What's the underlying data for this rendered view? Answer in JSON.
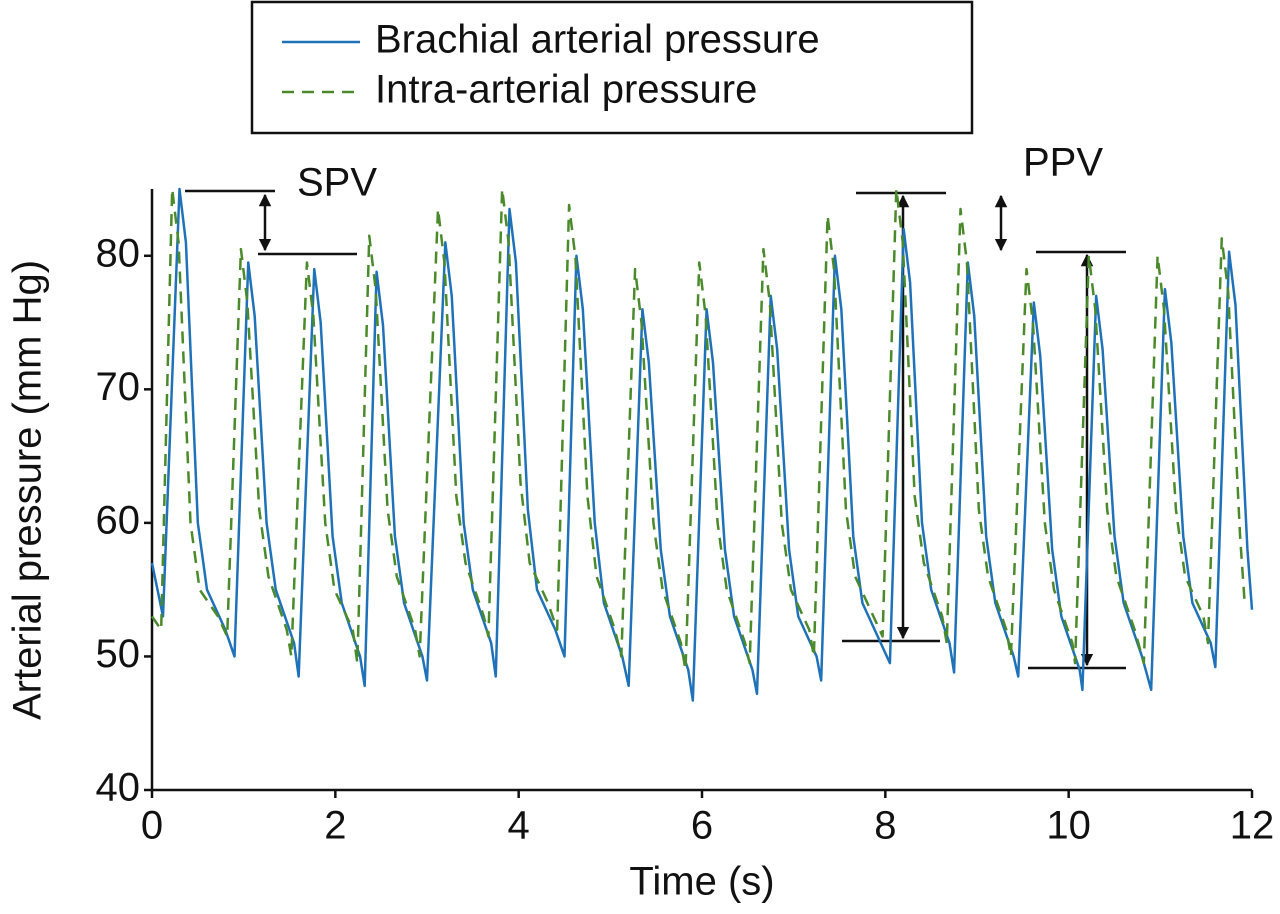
{
  "chart_data": {
    "type": "line",
    "xlabel": "Time (s)",
    "ylabel": "Arterial pressure (mm Hg)",
    "xlim": [
      0,
      12
    ],
    "ylim": [
      40,
      85
    ],
    "xticks": [
      0,
      2,
      4,
      6,
      8,
      10,
      12
    ],
    "yticks": [
      40,
      50,
      60,
      70,
      80
    ],
    "legend": "top",
    "annotations": [
      "SPV",
      "PPV"
    ],
    "series": [
      {
        "name": "Brachial arterial pressure",
        "color": "#1f72b8",
        "dash": false,
        "x": [
          0,
          0.12,
          0.3,
          0.37,
          0.5,
          0.6,
          0.8,
          0.9,
          1.05,
          1.12,
          1.25,
          1.35,
          1.55,
          1.6,
          1.77,
          1.84,
          1.97,
          2.07,
          2.27,
          2.32,
          2.45,
          2.52,
          2.65,
          2.75,
          2.95,
          3.0,
          3.2,
          3.27,
          3.4,
          3.5,
          3.7,
          3.75,
          3.9,
          3.97,
          4.1,
          4.2,
          4.4,
          4.5,
          4.63,
          4.7,
          4.83,
          4.93,
          5.13,
          5.2,
          5.35,
          5.42,
          5.55,
          5.65,
          5.85,
          5.9,
          6.05,
          6.12,
          6.25,
          6.35,
          6.55,
          6.6,
          6.75,
          6.82,
          6.95,
          7.05,
          7.25,
          7.3,
          7.45,
          7.52,
          7.65,
          7.75,
          7.95,
          8.05,
          8.2,
          8.27,
          8.4,
          8.5,
          8.7,
          8.75,
          8.9,
          8.97,
          9.1,
          9.2,
          9.4,
          9.45,
          9.62,
          9.69,
          9.82,
          9.92,
          10.12,
          10.15,
          10.3,
          10.37,
          10.5,
          10.6,
          10.8,
          10.9,
          11.05,
          11.12,
          11.25,
          11.35,
          11.55,
          11.6,
          11.75,
          11.82,
          11.95,
          12.0
        ],
        "values": [
          57,
          53,
          85,
          81,
          60,
          55,
          52,
          50,
          79.5,
          75.5,
          60,
          55,
          51,
          48.5,
          79,
          75,
          59,
          54,
          50,
          47.8,
          78.8,
          74.8,
          59,
          54,
          50,
          48.2,
          81,
          77,
          60,
          55,
          51,
          48.5,
          83.5,
          79.5,
          61,
          55,
          52,
          50,
          80,
          76,
          60,
          54,
          50,
          47.8,
          76,
          72,
          58,
          53,
          49,
          46.7,
          76,
          72,
          58,
          53,
          49,
          47.2,
          77,
          73,
          58,
          53,
          50,
          48.2,
          80,
          76,
          59,
          54,
          51,
          49.5,
          82,
          78,
          60,
          55,
          51,
          48.8,
          79.5,
          75.5,
          59,
          54,
          50,
          48.5,
          76.5,
          72.5,
          58,
          53,
          49,
          47.5,
          77,
          73,
          59,
          54,
          50,
          47.5,
          77.5,
          73.5,
          59,
          54,
          51,
          49.2,
          80.3,
          76.3,
          58,
          53.5
        ]
      },
      {
        "name": "Intra-arterial pressure",
        "color": "#4a8a2a",
        "dash": true,
        "x": [
          0,
          0.1,
          0.22,
          0.29,
          0.42,
          0.52,
          0.72,
          0.82,
          0.97,
          1.04,
          1.17,
          1.27,
          1.47,
          1.52,
          1.69,
          1.76,
          1.89,
          1.99,
          2.19,
          2.24,
          2.37,
          2.44,
          2.57,
          2.67,
          2.87,
          2.92,
          3.12,
          3.19,
          3.32,
          3.42,
          3.62,
          3.67,
          3.82,
          3.89,
          4.02,
          4.12,
          4.32,
          4.42,
          4.55,
          4.62,
          4.75,
          4.85,
          5.05,
          5.12,
          5.27,
          5.34,
          5.47,
          5.57,
          5.77,
          5.82,
          5.97,
          6.04,
          6.17,
          6.27,
          6.47,
          6.52,
          6.67,
          6.74,
          6.87,
          6.97,
          7.17,
          7.22,
          7.37,
          7.44,
          7.57,
          7.67,
          7.87,
          7.97,
          8.12,
          8.19,
          8.32,
          8.42,
          8.62,
          8.67,
          8.82,
          8.89,
          9.02,
          9.12,
          9.32,
          9.37,
          9.54,
          9.61,
          9.74,
          9.84,
          10.04,
          10.07,
          10.22,
          10.29,
          10.42,
          10.52,
          10.72,
          10.82,
          10.97,
          11.04,
          11.17,
          11.27,
          11.47,
          11.52,
          11.67,
          11.74,
          11.87,
          11.92
        ],
        "values": [
          53,
          52,
          85,
          81,
          60,
          55,
          53,
          51.5,
          80.5,
          76.5,
          61,
          56,
          52,
          50,
          79.5,
          75.5,
          60,
          55,
          52,
          49.5,
          81.5,
          77.5,
          61,
          56,
          52,
          50,
          83.5,
          79.5,
          62,
          57,
          53,
          51.5,
          85,
          81,
          63,
          57,
          54,
          52,
          83.8,
          79.8,
          62,
          56,
          52,
          50,
          79,
          75,
          60,
          55,
          51,
          49,
          79.5,
          75.5,
          60,
          55,
          51,
          49.5,
          80.5,
          76.5,
          60,
          55,
          52,
          50,
          83,
          79,
          61,
          56,
          53,
          51.5,
          85,
          81,
          62,
          57,
          53,
          51,
          83.5,
          79.5,
          61,
          56,
          52,
          50,
          79,
          75,
          60,
          55,
          51,
          49.5,
          80,
          76,
          61,
          56,
          52,
          49.5,
          80,
          76,
          61,
          56,
          53,
          51,
          81.3,
          77.3,
          59,
          54
        ]
      }
    ]
  }
}
